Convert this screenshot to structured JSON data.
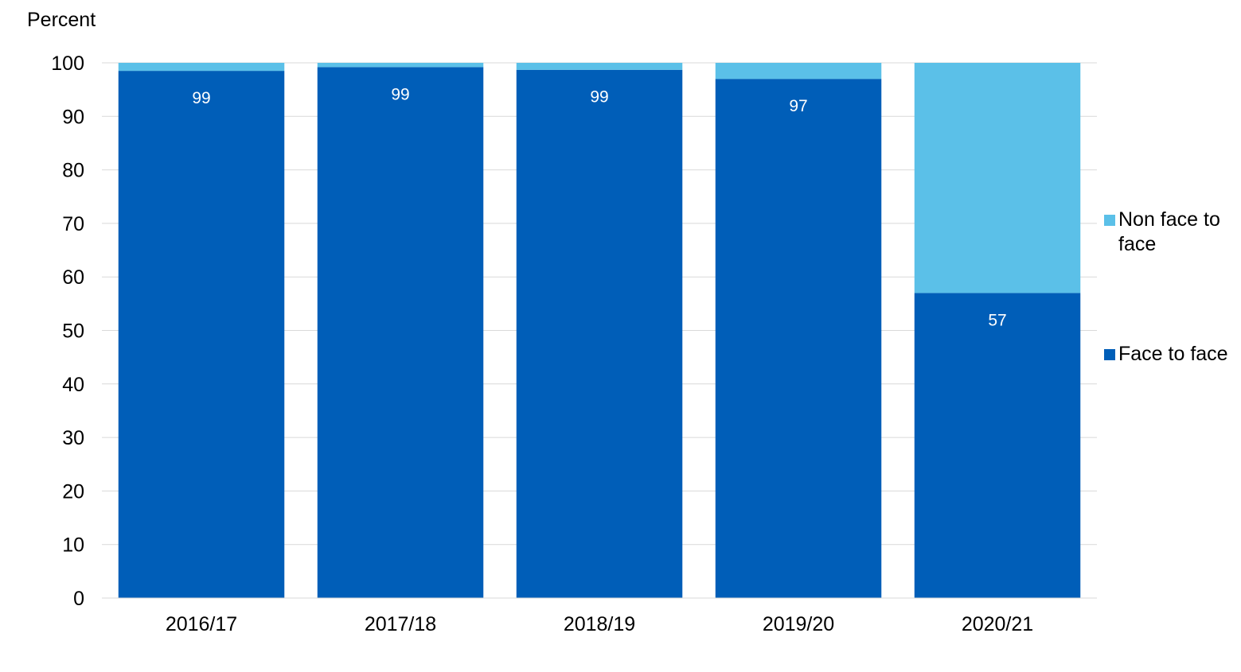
{
  "chart_data": {
    "type": "bar",
    "stacked": true,
    "categories": [
      "2016/17",
      "2017/18",
      "2018/19",
      "2019/20",
      "2020/21"
    ],
    "series": [
      {
        "name": "Face to face",
        "color": "#005EB8",
        "values": [
          98.5,
          99.2,
          98.7,
          97,
          57
        ],
        "labels": [
          "99",
          "99",
          "99",
          "97",
          "57"
        ]
      },
      {
        "name": "Non face to face",
        "color": "#5BC0E8",
        "values": [
          1.5,
          0.8,
          1.3,
          3,
          43
        ]
      }
    ],
    "ylabel": "Percent",
    "xlabel": "",
    "ylim": [
      0,
      100
    ],
    "yticks": [
      0,
      10,
      20,
      30,
      40,
      50,
      60,
      70,
      80,
      90,
      100
    ],
    "grid": true,
    "legend_position": "right",
    "legend_order": [
      "Non face to face",
      "Face to face"
    ]
  }
}
